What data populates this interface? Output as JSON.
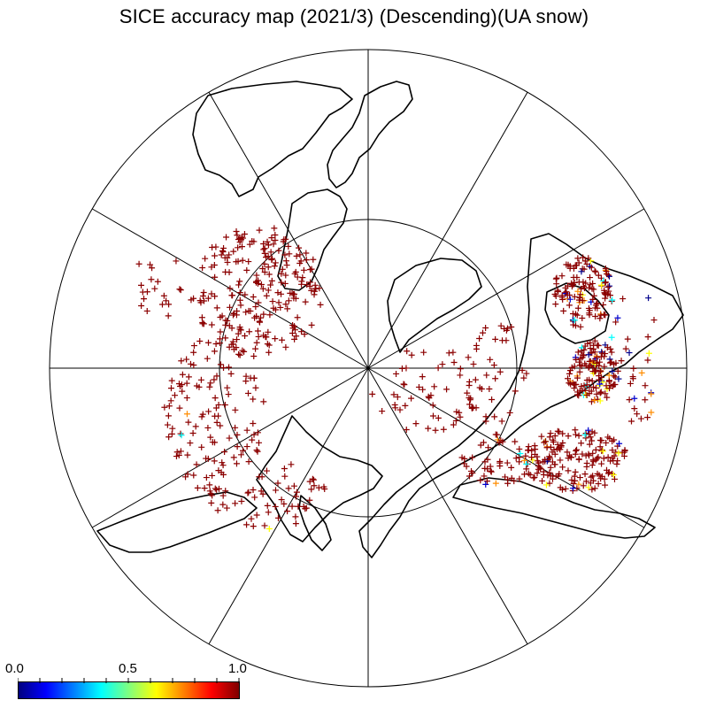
{
  "title": "SICE accuracy map (2021/3) (Descending)(UA snow)",
  "colorbar": {
    "labels": [
      "0.0",
      "0.5",
      "1.0"
    ],
    "min": 0.0,
    "max": 1.0,
    "colors": [
      "#00007f",
      "#0000ff",
      "#007fff",
      "#00ffff",
      "#7fff7f",
      "#ffff00",
      "#ff7f00",
      "#ff0000",
      "#7f0000"
    ]
  },
  "map": {
    "projection": "polar stereographic (north)",
    "meridian_lines": 12,
    "latitude_circle": true,
    "marker": "+",
    "coastline_color": "#000000",
    "dominant_marker_color": "#8b0000"
  }
}
